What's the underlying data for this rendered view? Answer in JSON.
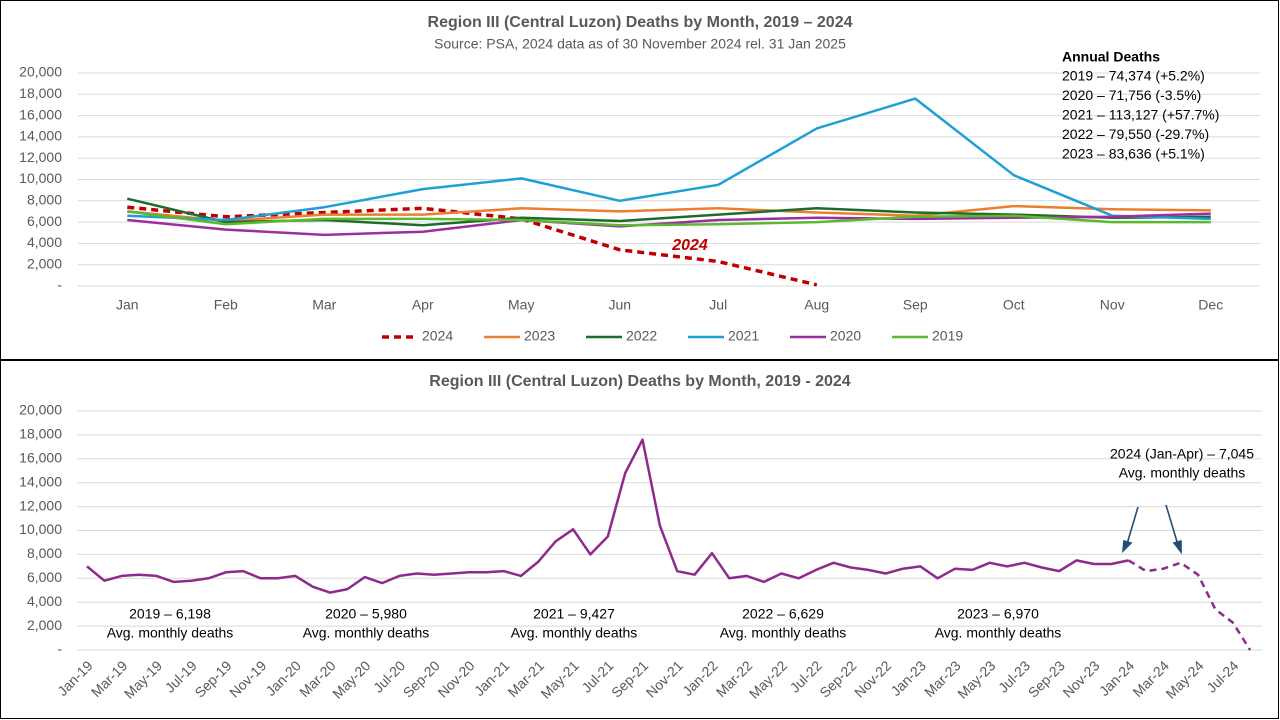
{
  "chart_data": [
    {
      "type": "line",
      "title": "Region III (Central Luzon) Deaths by Month, 2019 – 2024",
      "subtitle": "Source: PSA, 2024 data as of 30 November 2024 rel. 31 Jan 2025",
      "categories": [
        "Jan",
        "Feb",
        "Mar",
        "Apr",
        "May",
        "Jun",
        "Jul",
        "Aug",
        "Sep",
        "Oct",
        "Nov",
        "Dec"
      ],
      "series": [
        {
          "name": "2024",
          "color": "#c00000",
          "dash": true,
          "values": [
            7400,
            6500,
            6900,
            7300,
            6300,
            3400,
            2300,
            100,
            null,
            null,
            null,
            null
          ]
        },
        {
          "name": "2023",
          "color": "#ed7d31",
          "values": [
            7000,
            6100,
            6700,
            6700,
            7300,
            7000,
            7300,
            6900,
            6600,
            7500,
            7200,
            7100
          ]
        },
        {
          "name": "2022",
          "color": "#1f6b2a",
          "values": [
            8200,
            6000,
            6200,
            5700,
            6400,
            6100,
            6700,
            7300,
            6900,
            6700,
            6400,
            6500
          ]
        },
        {
          "name": "2021",
          "color": "#1ea0d6",
          "values": [
            6600,
            6200,
            7400,
            9100,
            10100,
            8000,
            9500,
            14800,
            17600,
            10400,
            6600,
            6300
          ]
        },
        {
          "name": "2020",
          "color": "#9b2fa0",
          "values": [
            6200,
            5300,
            4800,
            5100,
            6200,
            5600,
            6200,
            6400,
            6300,
            6400,
            6500,
            6800
          ]
        },
        {
          "name": "2019",
          "color": "#5cb82f",
          "values": [
            7000,
            5800,
            6300,
            6300,
            6200,
            5700,
            5800,
            6000,
            6500,
            6600,
            6000,
            6000
          ]
        }
      ],
      "ylim": [
        0,
        20000
      ],
      "yticks": [
        {
          "value": 0,
          "label": "-"
        },
        {
          "value": 2000,
          "label": "2,000"
        },
        {
          "value": 4000,
          "label": "4,000"
        },
        {
          "value": 6000,
          "label": "6,000"
        },
        {
          "value": 8000,
          "label": "8,000"
        },
        {
          "value": 10000,
          "label": "10,000"
        },
        {
          "value": 12000,
          "label": "12,000"
        },
        {
          "value": 14000,
          "label": "14,000"
        },
        {
          "value": 16000,
          "label": "16,000"
        },
        {
          "value": 18000,
          "label": "18,000"
        },
        {
          "value": 20000,
          "label": "20,000"
        }
      ],
      "grid": true,
      "legend": "bottom",
      "series_label": "2024",
      "annual_box": {
        "title": "Annual Deaths",
        "lines": [
          "2019 – 74,374 (+5.2%)",
          "2020 – 71,756 (-3.5%)",
          "2021 – 113,127 (+57.7%)",
          "2022 – 79,550 (-29.7%)",
          "2023 – 83,636 (+5.1%)"
        ]
      }
    },
    {
      "type": "line",
      "title": "Region III (Central Luzon) Deaths by Month, 2019 - 2024",
      "categories": [
        "Jan-19",
        null,
        "Mar-19",
        null,
        "May-19",
        null,
        "Jul-19",
        null,
        "Sep-19",
        null,
        "Nov-19",
        null,
        "Jan-20",
        null,
        "Mar-20",
        null,
        "May-20",
        null,
        "Jul-20",
        null,
        "Sep-20",
        null,
        "Nov-20",
        null,
        "Jan-21",
        null,
        "Mar-21",
        null,
        "May-21",
        null,
        "Jul-21",
        null,
        "Sep-21",
        null,
        "Nov-21",
        null,
        "Jan-22",
        null,
        "Mar-22",
        null,
        "May-22",
        null,
        "Jul-22",
        null,
        "Sep-22",
        null,
        "Nov-22",
        null,
        "Jan-23",
        null,
        "Mar-23",
        null,
        "May-23",
        null,
        "Jul-23",
        null,
        "Sep-23",
        null,
        "Nov-23",
        null,
        "Jan-24",
        null,
        "Mar-24",
        null,
        "May-24",
        null,
        "Jul-24",
        null
      ],
      "series": [
        {
          "color": "#8e2a8e",
          "values": [
            7000,
            5800,
            6200,
            6300,
            6200,
            5700,
            5800,
            6000,
            6500,
            6600,
            6000,
            6000,
            6200,
            5300,
            4800,
            5100,
            6100,
            5600,
            6200,
            6400,
            6300,
            6400,
            6500,
            6500,
            6600,
            6200,
            7400,
            9100,
            10100,
            8000,
            9500,
            14800,
            17600,
            10400,
            6600,
            6300,
            8100,
            6000,
            6200,
            5700,
            6400,
            6000,
            6700,
            7300,
            6900,
            6700,
            6400,
            6800,
            7000,
            6000,
            6800,
            6700,
            7300,
            7000,
            7300,
            6900,
            6600,
            7500,
            7200,
            7200,
            7500,
            null,
            null,
            null,
            null,
            null,
            null,
            null
          ]
        },
        {
          "color": "#8e2a8e",
          "dash": true,
          "values": [
            null,
            null,
            null,
            null,
            null,
            null,
            null,
            null,
            null,
            null,
            null,
            null,
            null,
            null,
            null,
            null,
            null,
            null,
            null,
            null,
            null,
            null,
            null,
            null,
            null,
            null,
            null,
            null,
            null,
            null,
            null,
            null,
            null,
            null,
            null,
            null,
            null,
            null,
            null,
            null,
            null,
            null,
            null,
            null,
            null,
            null,
            null,
            null,
            null,
            null,
            null,
            null,
            null,
            null,
            null,
            null,
            null,
            null,
            null,
            null,
            7500,
            6600,
            6800,
            7300,
            6300,
            3400,
            2300,
            0
          ]
        }
      ],
      "ylim": [
        0,
        20000
      ],
      "yticks": [
        {
          "value": 0,
          "label": "-"
        },
        {
          "value": 2000,
          "label": "2,000"
        },
        {
          "value": 4000,
          "label": "4,000"
        },
        {
          "value": 6000,
          "label": "6,000"
        },
        {
          "value": 8000,
          "label": "8,000"
        },
        {
          "value": 10000,
          "label": "10,000"
        },
        {
          "value": 12000,
          "label": "12,000"
        },
        {
          "value": 14000,
          "label": "14,000"
        },
        {
          "value": 16000,
          "label": "16,000"
        },
        {
          "value": 18000,
          "label": "18,000"
        },
        {
          "value": 20000,
          "label": "20,000"
        }
      ],
      "grid": true,
      "annotations": [
        [
          "2019 – 6,198",
          "Avg. monthly deaths"
        ],
        [
          "2020 – 5,980",
          "Avg. monthly deaths"
        ],
        [
          "2021 – 9,427",
          "Avg. monthly deaths"
        ],
        [
          "2022 – 6,629",
          "Avg. monthly deaths"
        ],
        [
          "2023 – 6,970",
          "Avg. monthly deaths"
        ],
        [
          "2024 (Jan-Apr) – 7,045",
          "Avg. monthly deaths"
        ]
      ]
    }
  ]
}
